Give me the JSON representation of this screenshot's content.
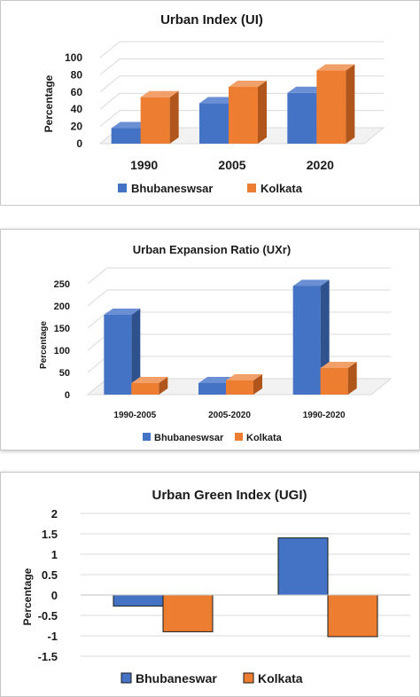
{
  "colors": {
    "bhubaneswar": "#4472c4",
    "bhubaneswar_side": "#2f528f",
    "bhubaneswar_top": "#6a8fd4",
    "kolkata": "#ed7d31",
    "kolkata_side": "#b0561c",
    "kolkata_top": "#f2a06a"
  },
  "chart_data": [
    {
      "type": "bar",
      "title": "Urban Index (UI)",
      "ylabel": "Percentage",
      "categories": [
        "1990",
        "2005",
        "2020"
      ],
      "series": [
        {
          "name": "Bhubaneswsar",
          "values": [
            18,
            47,
            59
          ]
        },
        {
          "name": "Kolkata",
          "values": [
            54,
            66,
            85
          ]
        }
      ],
      "ylim": [
        0,
        100
      ],
      "yticks": [
        "0",
        "20",
        "40",
        "60",
        "80",
        "100"
      ],
      "legend": "bottom",
      "style": "3d"
    },
    {
      "type": "bar",
      "title": "Urban Expansion Ratio (UXr)",
      "ylabel": "Percentage",
      "categories": [
        "1990-2005",
        "2005-2020",
        "1990-2020"
      ],
      "series": [
        {
          "name": "Bhubaneswsar",
          "values": [
            180,
            26,
            245
          ]
        },
        {
          "name": "Kolkata",
          "values": [
            26,
            32,
            60
          ]
        }
      ],
      "ylim": [
        0,
        250
      ],
      "yticks": [
        "0",
        "50",
        "100",
        "150",
        "200",
        "250"
      ],
      "legend": "bottom",
      "style": "3d"
    },
    {
      "type": "bar",
      "title": "Urban Green Index (UGI)",
      "ylabel": "Percentage",
      "categories": [
        "",
        ""
      ],
      "series": [
        {
          "name": "Bhubaneswar",
          "values": [
            -0.27,
            1.4
          ]
        },
        {
          "name": "Kolkata",
          "values": [
            -0.9,
            -1.02
          ]
        }
      ],
      "ylim": [
        -1.5,
        2
      ],
      "yticks": [
        "2",
        "1.5",
        "1",
        "0.5",
        "0",
        "-0.5",
        "-1",
        "-1.5"
      ],
      "legend": "bottom",
      "grid": true
    }
  ]
}
